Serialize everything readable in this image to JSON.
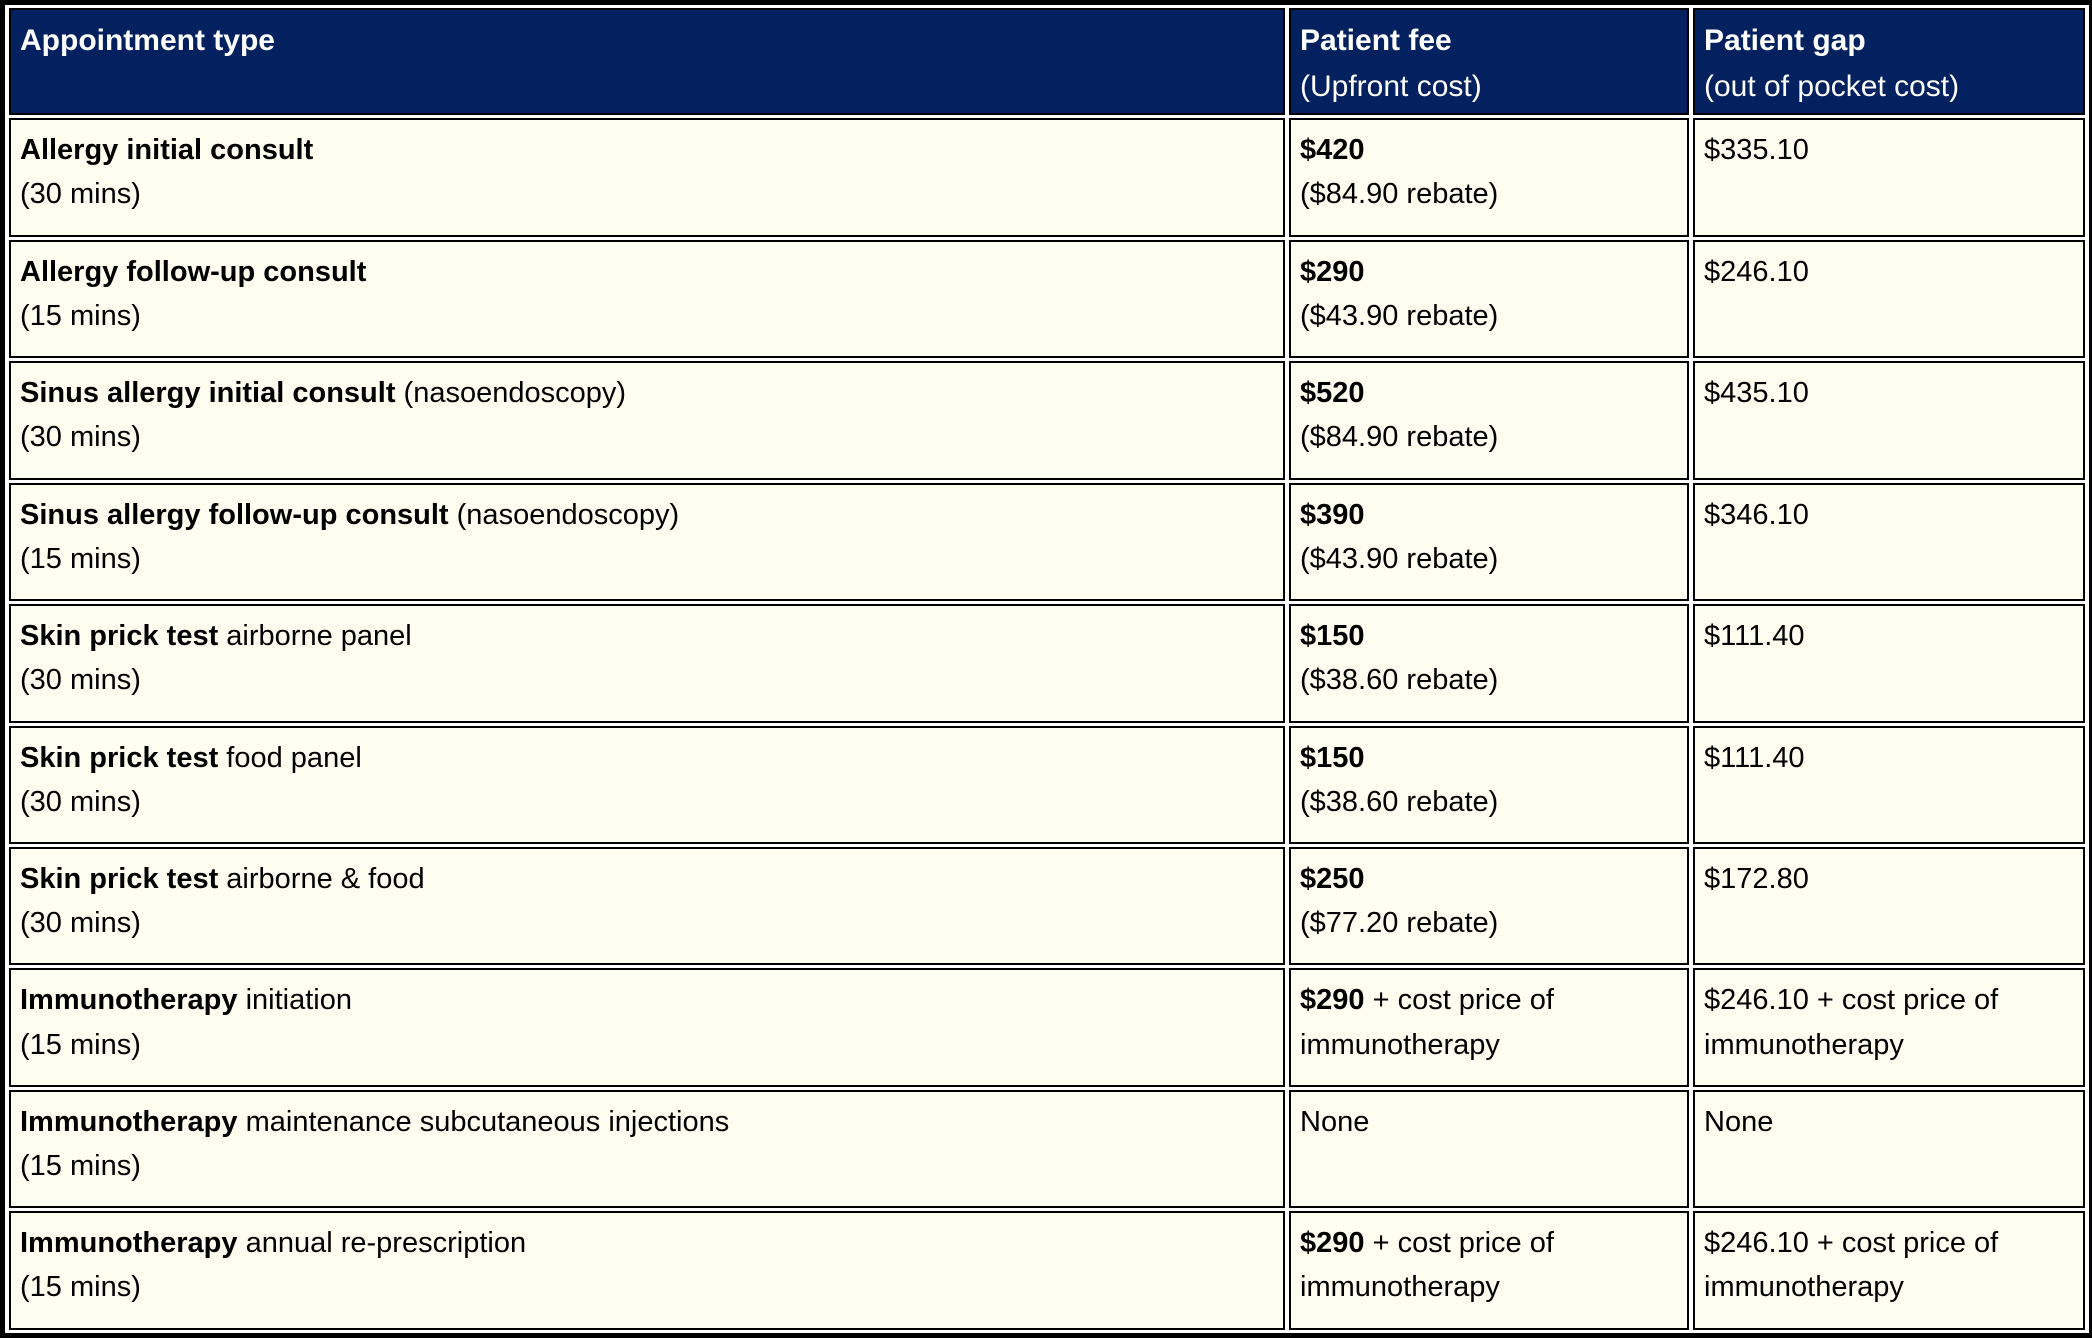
{
  "colors": {
    "header-bg": "#02215E",
    "header-text": "#FFFFFF",
    "cell-bg": "#FDFDF0",
    "border-color": "#000000",
    "gutter-bg": "#FFFFFF",
    "body-text": "#000000"
  },
  "table": {
    "columns": [
      {
        "title": "Appointment type",
        "subtitle": ""
      },
      {
        "title": "Patient fee",
        "subtitle": "(Upfront cost)"
      },
      {
        "title": "Patient gap",
        "subtitle": "(out of pocket cost)"
      }
    ],
    "rows": [
      {
        "name_bold": "Allergy initial consult",
        "name_rest": "",
        "duration": "(30 mins)",
        "fee_bold": "$420",
        "fee_rest": "",
        "fee_note": "($84.90 rebate)",
        "gap": "$335.10"
      },
      {
        "name_bold": "Allergy follow-up consult",
        "name_rest": "",
        "duration": "(15 mins)",
        "fee_bold": "$290",
        "fee_rest": "",
        "fee_note": "($43.90 rebate)",
        "gap": "$246.10"
      },
      {
        "name_bold": "Sinus allergy initial consult",
        "name_rest": " (nasoendoscopy)",
        "duration": "(30 mins)",
        "fee_bold": "$520",
        "fee_rest": "",
        "fee_note": "($84.90 rebate)",
        "gap": "$435.10"
      },
      {
        "name_bold": "Sinus allergy follow-up consult",
        "name_rest": " (nasoendoscopy)",
        "duration": "(15 mins)",
        "fee_bold": "$390",
        "fee_rest": "",
        "fee_note": "($43.90 rebate)",
        "gap": "$346.10"
      },
      {
        "name_bold": "Skin prick test",
        "name_rest": " airborne panel",
        "duration": "(30 mins)",
        "fee_bold": "$150",
        "fee_rest": "",
        "fee_note": "($38.60 rebate)",
        "gap": "$111.40"
      },
      {
        "name_bold": "Skin prick test",
        "name_rest": " food panel",
        "duration": "(30 mins)",
        "fee_bold": "$150",
        "fee_rest": "",
        "fee_note": "($38.60 rebate)",
        "gap": "$111.40"
      },
      {
        "name_bold": "Skin prick test",
        "name_rest": " airborne & food",
        "duration": "(30 mins)",
        "fee_bold": "$250",
        "fee_rest": "",
        "fee_note": "($77.20 rebate)",
        "gap": "$172.80"
      },
      {
        "name_bold": "Immunotherapy",
        "name_rest": " initiation",
        "duration": "(15 mins)",
        "fee_bold": "$290",
        "fee_rest": " + cost price of immunotherapy",
        "fee_note": "",
        "gap": "$246.10 + cost price of immunotherapy"
      },
      {
        "name_bold": "Immunotherapy",
        "name_rest": " maintenance subcutaneous injections",
        "duration": "(15 mins)",
        "fee_bold": "",
        "fee_rest": "None",
        "fee_note": "",
        "gap": "None"
      },
      {
        "name_bold": "Immunotherapy",
        "name_rest": " annual re-prescription",
        "duration": "(15 mins)",
        "fee_bold": "$290",
        "fee_rest": " + cost price of immunotherapy",
        "fee_note": "",
        "gap": "$246.10 + cost price of immunotherapy"
      }
    ]
  }
}
